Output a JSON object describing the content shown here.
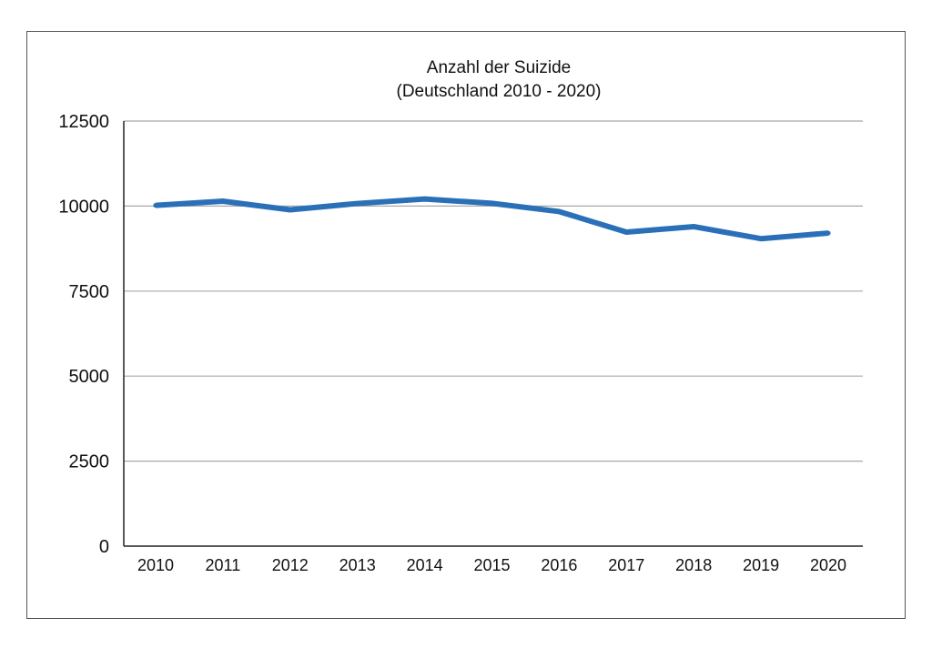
{
  "chart_data": {
    "type": "line",
    "title": "Anzahl der Suizide",
    "subtitle": "(Deutschland 2010 - 2020)",
    "xlabel": "",
    "ylabel": "",
    "categories": [
      "2010",
      "2011",
      "2012",
      "2013",
      "2014",
      "2015",
      "2016",
      "2017",
      "2018",
      "2019",
      "2020"
    ],
    "series": [
      {
        "color": "#2a70b8",
        "values": [
          10021,
          10144,
          9890,
          10076,
          10209,
          10080,
          9838,
          9235,
          9396,
          9041,
          9206
        ]
      }
    ],
    "ylim": [
      0,
      12500
    ],
    "yticks": [
      "0",
      "2500",
      "5000",
      "7500",
      "10000",
      "12500"
    ],
    "grid": true,
    "legend": "none"
  }
}
